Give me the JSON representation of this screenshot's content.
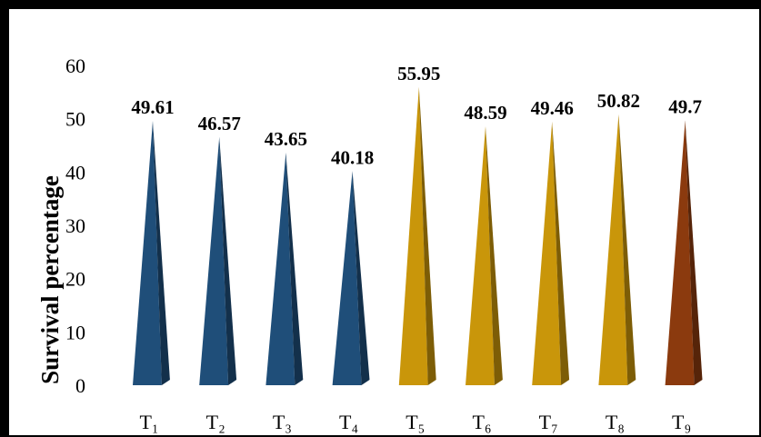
{
  "chart_data": {
    "type": "bar",
    "bar_shape": "pyramid",
    "categories": [
      "T₁",
      "T₂",
      "T₃",
      "T₄",
      "T₅",
      "T₆",
      "T₇",
      "T₈",
      "T₉"
    ],
    "values": [
      49.61,
      46.57,
      43.65,
      40.18,
      55.95,
      48.59,
      49.46,
      50.82,
      49.7
    ],
    "data_labels": [
      "49.61",
      "46.57",
      "43.65",
      "40.18",
      "55.95",
      "48.59",
      "49.46",
      "50.82",
      "49.7"
    ],
    "colors": [
      "#1f4e79",
      "#1f4e79",
      "#1f4e79",
      "#1f4e79",
      "#c9960a",
      "#c9960a",
      "#c9960a",
      "#c9960a",
      "#8b3a0e"
    ],
    "title": "",
    "xlabel": "",
    "ylabel": "Survival percentage",
    "ylim": [
      0,
      60
    ],
    "yticks": [
      "0",
      "10",
      "20",
      "30",
      "40",
      "50",
      "60"
    ],
    "grid": false,
    "legend": "none"
  }
}
